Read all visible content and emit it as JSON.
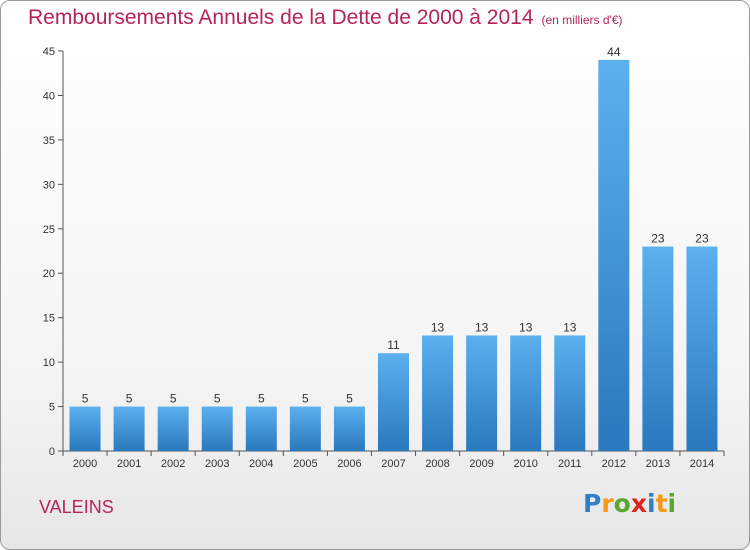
{
  "header": {
    "title": "Remboursements Annuels de la Dette de 2000 à 2014",
    "subtitle": "(en milliers d'€)"
  },
  "footer": {
    "place": "VALEINS",
    "logo_text": "Proxiti",
    "logo_letters": [
      {
        "ch": "P",
        "color": "#2f7fc7"
      },
      {
        "ch": "r",
        "color": "#f39a1b"
      },
      {
        "ch": "o",
        "color": "#5aa82f"
      },
      {
        "ch": "x",
        "color": "#e0231c"
      },
      {
        "ch": "i",
        "color": "#2f7fc7"
      },
      {
        "ch": "t",
        "color": "#f39a1b"
      },
      {
        "ch": "i",
        "color": "#5aa82f"
      }
    ]
  },
  "chart_data": {
    "type": "bar",
    "title": "Remboursements Annuels de la Dette de 2000 à 2014",
    "subtitle": "(en milliers d'€)",
    "categories": [
      "2000",
      "2001",
      "2002",
      "2003",
      "2004",
      "2005",
      "2006",
      "2007",
      "2008",
      "2009",
      "2010",
      "2011",
      "2012",
      "2013",
      "2014"
    ],
    "values": [
      5,
      5,
      5,
      5,
      5,
      5,
      5,
      11,
      13,
      13,
      13,
      13,
      44,
      23,
      23
    ],
    "ylim": [
      0,
      45
    ],
    "yticks": [
      0,
      5,
      10,
      15,
      20,
      25,
      30,
      35,
      40,
      45
    ],
    "grid": false,
    "bar_color": "#3d93d8",
    "show_data_labels": true
  }
}
